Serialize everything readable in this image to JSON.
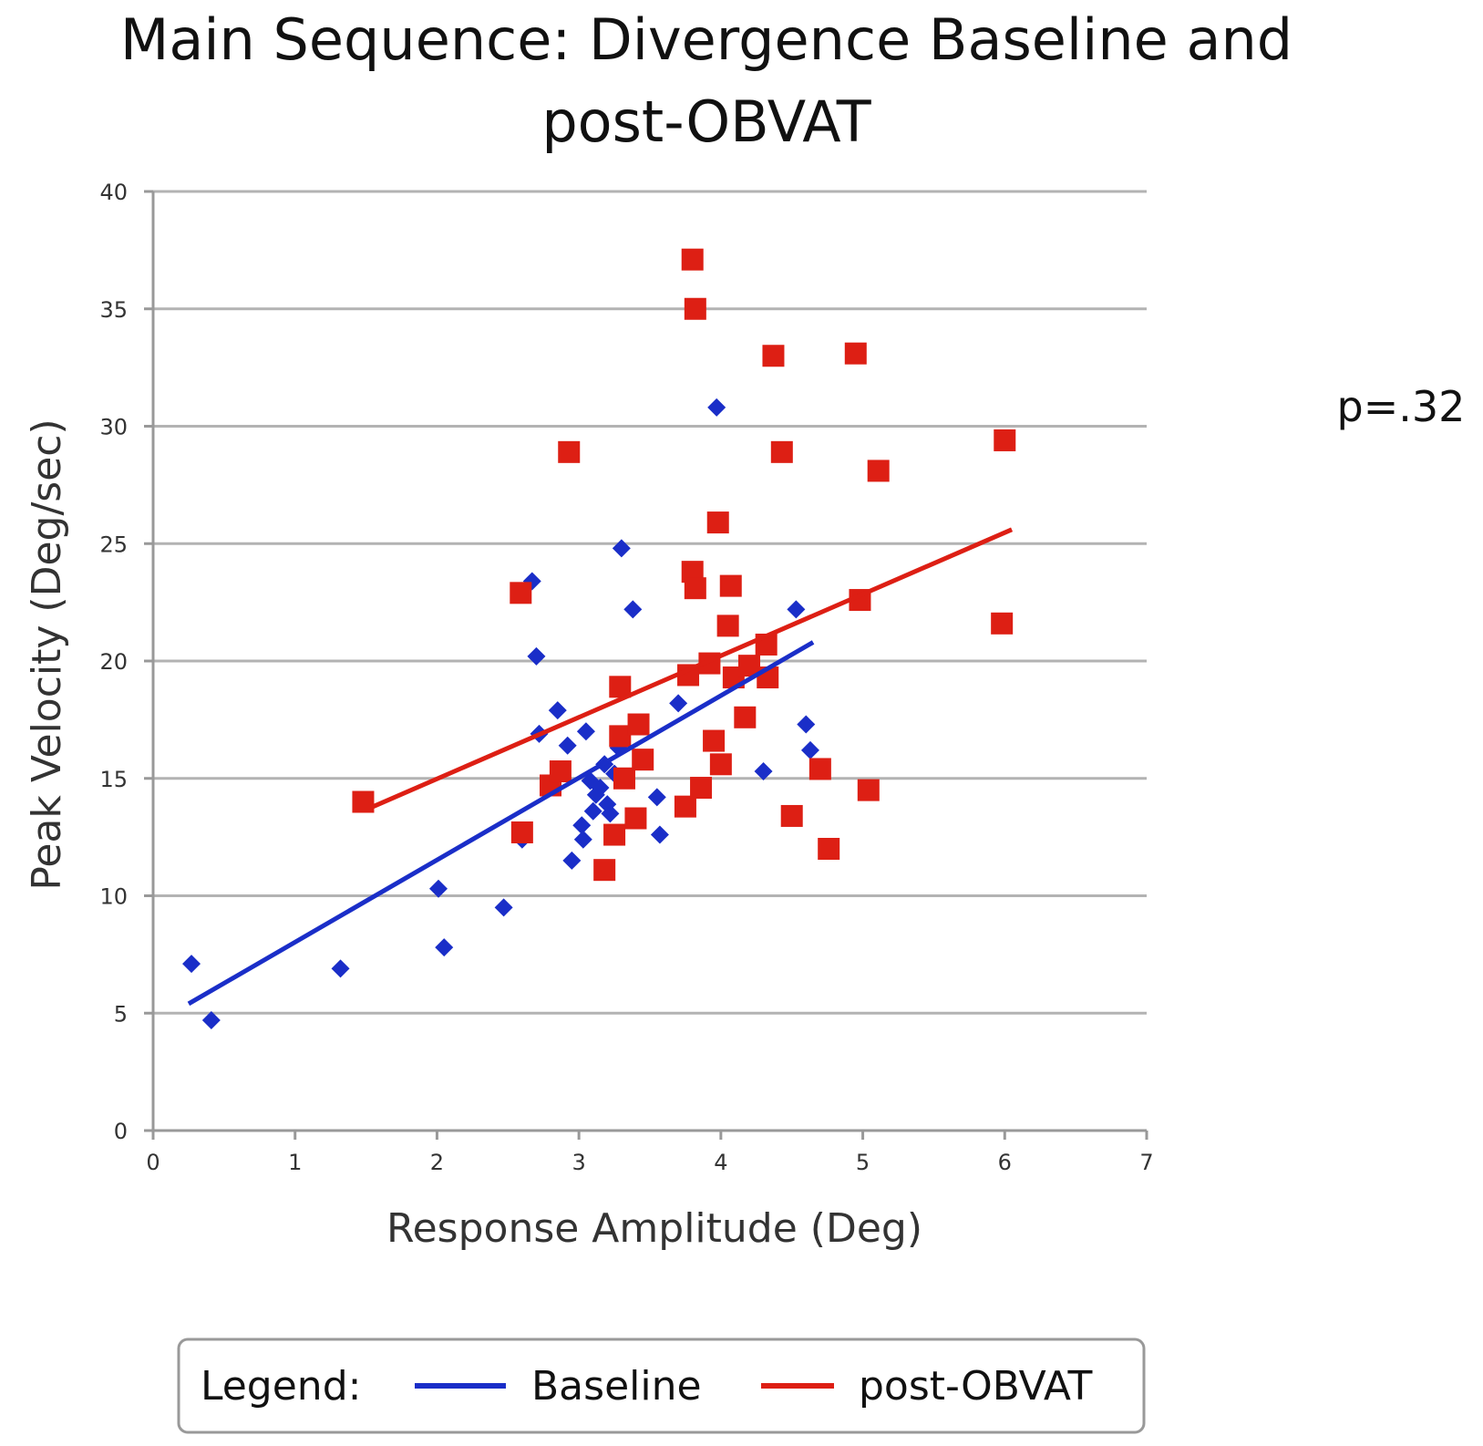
{
  "chart_data": {
    "type": "scatter",
    "title_lines": [
      "Main Sequence: Divergence Baseline and",
      "post-OBVAT"
    ],
    "xlabel": "Response Amplitude (Deg)",
    "ylabel": "Peak Velocity (Deg/sec)",
    "xlim": [
      0,
      7
    ],
    "ylim": [
      0,
      40
    ],
    "x_ticks": [
      0,
      1,
      2,
      3,
      4,
      5,
      6,
      7
    ],
    "y_ticks": [
      0,
      5,
      10,
      15,
      20,
      25,
      30,
      35,
      40
    ],
    "grid": "horizontal",
    "annotation": "p=.32",
    "legend": {
      "label": "Legend:",
      "placement": "bottom",
      "entries": [
        {
          "name": "Baseline",
          "color": "#1a2ec8"
        },
        {
          "name": "post-OBVAT",
          "color": "#dd1f14"
        }
      ]
    },
    "series": [
      {
        "name": "Baseline",
        "marker": "diamond",
        "color": "#1a2ec8",
        "points": [
          [
            0.27,
            7.1
          ],
          [
            0.41,
            4.7
          ],
          [
            1.32,
            6.9
          ],
          [
            2.01,
            10.3
          ],
          [
            2.05,
            7.8
          ],
          [
            2.47,
            9.5
          ],
          [
            2.6,
            12.4
          ],
          [
            2.67,
            23.4
          ],
          [
            2.7,
            20.2
          ],
          [
            2.72,
            16.9
          ],
          [
            2.85,
            17.9
          ],
          [
            2.92,
            16.4
          ],
          [
            2.95,
            11.5
          ],
          [
            3.02,
            13.0
          ],
          [
            3.03,
            12.4
          ],
          [
            3.05,
            17.0
          ],
          [
            3.08,
            14.9
          ],
          [
            3.1,
            13.6
          ],
          [
            3.12,
            14.3
          ],
          [
            3.15,
            14.6
          ],
          [
            3.18,
            15.6
          ],
          [
            3.2,
            13.9
          ],
          [
            3.22,
            13.5
          ],
          [
            3.25,
            15.2
          ],
          [
            3.28,
            16.3
          ],
          [
            3.3,
            24.8
          ],
          [
            3.38,
            22.2
          ],
          [
            3.55,
            14.2
          ],
          [
            3.57,
            12.6
          ],
          [
            3.7,
            18.2
          ],
          [
            3.97,
            30.8
          ],
          [
            4.3,
            15.3
          ],
          [
            4.53,
            22.2
          ],
          [
            4.6,
            17.3
          ],
          [
            4.63,
            16.2
          ]
        ],
        "trendline": {
          "x": [
            0.25,
            4.65
          ],
          "y": [
            5.4,
            20.8
          ]
        }
      },
      {
        "name": "post-OBVAT",
        "marker": "square",
        "color": "#dd1f14",
        "points": [
          [
            1.48,
            14.0
          ],
          [
            2.59,
            22.9
          ],
          [
            2.6,
            12.7
          ],
          [
            2.8,
            14.7
          ],
          [
            2.87,
            15.3
          ],
          [
            2.93,
            28.9
          ],
          [
            3.18,
            11.1
          ],
          [
            3.25,
            12.6
          ],
          [
            3.29,
            18.9
          ],
          [
            3.29,
            16.8
          ],
          [
            3.32,
            15.0
          ],
          [
            3.4,
            13.3
          ],
          [
            3.42,
            17.3
          ],
          [
            3.45,
            15.8
          ],
          [
            3.75,
            13.8
          ],
          [
            3.77,
            19.4
          ],
          [
            3.8,
            37.1
          ],
          [
            3.8,
            23.8
          ],
          [
            3.82,
            23.1
          ],
          [
            3.82,
            35.0
          ],
          [
            3.86,
            14.6
          ],
          [
            3.92,
            19.9
          ],
          [
            3.95,
            16.6
          ],
          [
            3.98,
            25.9
          ],
          [
            4.0,
            15.6
          ],
          [
            4.05,
            21.5
          ],
          [
            4.07,
            23.2
          ],
          [
            4.09,
            19.3
          ],
          [
            4.17,
            17.6
          ],
          [
            4.2,
            19.8
          ],
          [
            4.32,
            20.7
          ],
          [
            4.33,
            19.3
          ],
          [
            4.37,
            33.0
          ],
          [
            4.43,
            28.9
          ],
          [
            4.5,
            13.4
          ],
          [
            4.7,
            15.4
          ],
          [
            4.76,
            12.0
          ],
          [
            4.95,
            33.1
          ],
          [
            4.98,
            22.6
          ],
          [
            5.04,
            14.5
          ],
          [
            5.11,
            28.1
          ],
          [
            5.98,
            21.6
          ],
          [
            6.0,
            29.4
          ]
        ],
        "trendline": {
          "x": [
            1.55,
            6.05
          ],
          "y": [
            13.8,
            25.6
          ]
        }
      }
    ]
  }
}
